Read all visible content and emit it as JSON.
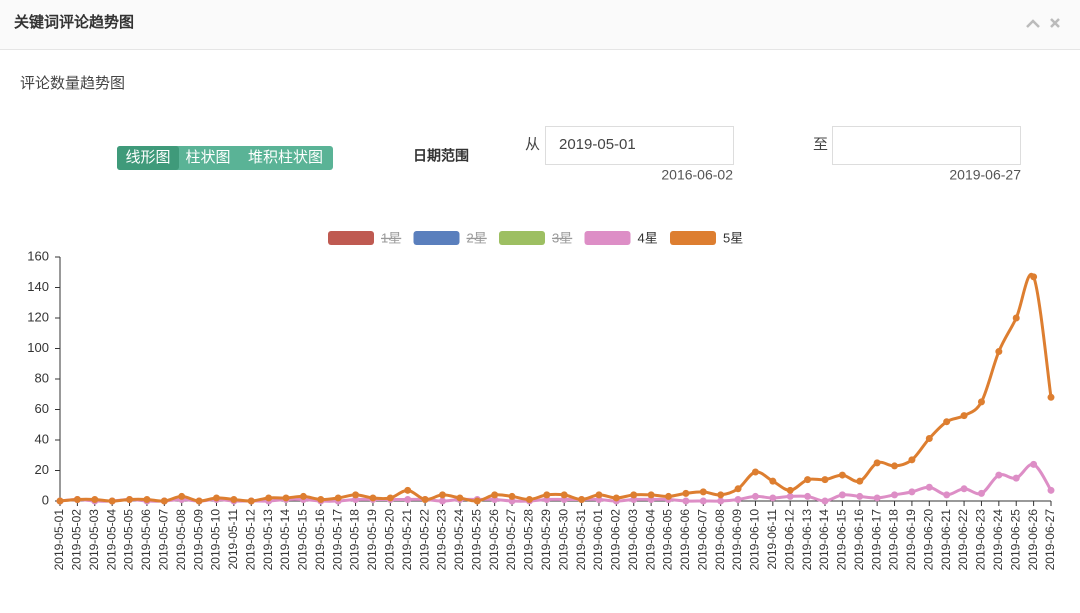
{
  "header": {
    "title": "关键词评论趋势图"
  },
  "panel": {
    "title": "评论数量趋势图"
  },
  "chart_types": [
    "线形图",
    "柱状图",
    "堆积柱状图"
  ],
  "active_chart_type": 0,
  "date_range": {
    "label": "日期范围",
    "from_label": "从",
    "from_value": "2019-05-01",
    "from_min": "2016-06-02",
    "to_label": "至",
    "to_max": "2019-06-27"
  },
  "chart_data": {
    "type": "line",
    "smooth": true,
    "grid": false,
    "ylim": [
      0,
      160
    ],
    "yticks": [
      0,
      20,
      40,
      60,
      80,
      100,
      120,
      140,
      160
    ],
    "categories": [
      "2019-05-01",
      "2019-05-02",
      "2019-05-03",
      "2019-05-04",
      "2019-05-05",
      "2019-05-06",
      "2019-05-07",
      "2019-05-08",
      "2019-05-09",
      "2019-05-10",
      "2019-05-11",
      "2019-05-12",
      "2019-05-13",
      "2019-05-14",
      "2019-05-15",
      "2019-05-16",
      "2019-05-17",
      "2019-05-18",
      "2019-05-19",
      "2019-05-20",
      "2019-05-21",
      "2019-05-22",
      "2019-05-23",
      "2019-05-24",
      "2019-05-25",
      "2019-05-26",
      "2019-05-27",
      "2019-05-28",
      "2019-05-29",
      "2019-05-30",
      "2019-05-31",
      "2019-06-01",
      "2019-06-02",
      "2019-06-03",
      "2019-06-04",
      "2019-06-05",
      "2019-06-06",
      "2019-06-07",
      "2019-06-08",
      "2019-06-09",
      "2019-06-10",
      "2019-06-11",
      "2019-06-12",
      "2019-06-13",
      "2019-06-14",
      "2019-06-15",
      "2019-06-16",
      "2019-06-17",
      "2019-06-18",
      "2019-06-19",
      "2019-06-20",
      "2019-06-21",
      "2019-06-22",
      "2019-06-23",
      "2019-06-24",
      "2019-06-25",
      "2019-06-26",
      "2019-06-27"
    ],
    "series": [
      {
        "name": "1星",
        "color": "#bf5a51",
        "visible": false
      },
      {
        "name": "2星",
        "color": "#5a7fbd",
        "visible": false
      },
      {
        "name": "3星",
        "color": "#9dbf62",
        "visible": false
      },
      {
        "name": "4星",
        "color": "#dd8ec6",
        "visible": true,
        "values": [
          0,
          1,
          0,
          0,
          1,
          0,
          0,
          1,
          0,
          1,
          0,
          0,
          0,
          1,
          1,
          0,
          0,
          1,
          1,
          1,
          1,
          1,
          0,
          1,
          1,
          1,
          0,
          0,
          1,
          1,
          1,
          1,
          0,
          1,
          1,
          1,
          0,
          0,
          0,
          1,
          3,
          2,
          3,
          3,
          0,
          4,
          3,
          2,
          4,
          6,
          9,
          4,
          8,
          5,
          17,
          15,
          24,
          7
        ]
      },
      {
        "name": "5星",
        "color": "#dd7e30",
        "visible": true,
        "values": [
          0,
          1,
          1,
          0,
          1,
          1,
          0,
          3,
          0,
          2,
          1,
          0,
          2,
          2,
          3,
          1,
          2,
          4,
          2,
          2,
          7,
          1,
          4,
          2,
          0,
          4,
          3,
          1,
          4,
          4,
          1,
          4,
          2,
          4,
          4,
          3,
          5,
          6,
          4,
          8,
          19,
          13,
          7,
          14,
          14,
          17,
          13,
          25,
          23,
          27,
          41,
          52,
          56,
          65,
          98,
          120,
          147,
          68
        ]
      }
    ]
  }
}
